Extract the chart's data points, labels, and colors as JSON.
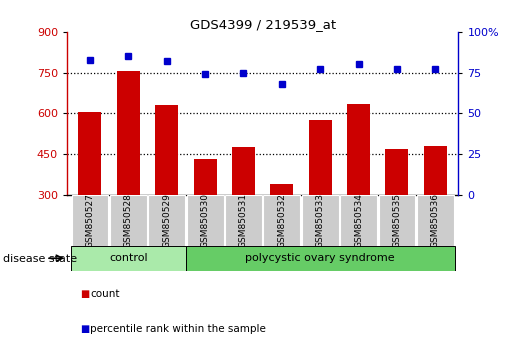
{
  "title": "GDS4399 / 219539_at",
  "samples": [
    "GSM850527",
    "GSM850528",
    "GSM850529",
    "GSM850530",
    "GSM850531",
    "GSM850532",
    "GSM850533",
    "GSM850534",
    "GSM850535",
    "GSM850536"
  ],
  "bar_values": [
    603,
    755,
    630,
    430,
    475,
    340,
    577,
    635,
    468,
    480
  ],
  "dot_values": [
    83,
    85,
    82,
    74,
    75,
    68,
    77,
    80,
    77,
    77
  ],
  "bar_color": "#cc0000",
  "dot_color": "#0000cc",
  "ylim_left": [
    300,
    900
  ],
  "ylim_right": [
    0,
    100
  ],
  "yticks_left": [
    300,
    450,
    600,
    750,
    900
  ],
  "yticks_right": [
    0,
    25,
    50,
    75,
    100
  ],
  "hlines": [
    450,
    600,
    750
  ],
  "groups": [
    {
      "label": "control",
      "start": 0,
      "end": 3,
      "color": "#aaeaaa"
    },
    {
      "label": "polycystic ovary syndrome",
      "start": 3,
      "end": 10,
      "color": "#66cc66"
    }
  ],
  "disease_state_label": "disease state",
  "bar_color_legend": "#cc0000",
  "dot_color_legend": "#0000cc",
  "tick_label_color_left": "#cc0000",
  "tick_label_color_right": "#0000cc",
  "sample_box_color": "#cccccc"
}
